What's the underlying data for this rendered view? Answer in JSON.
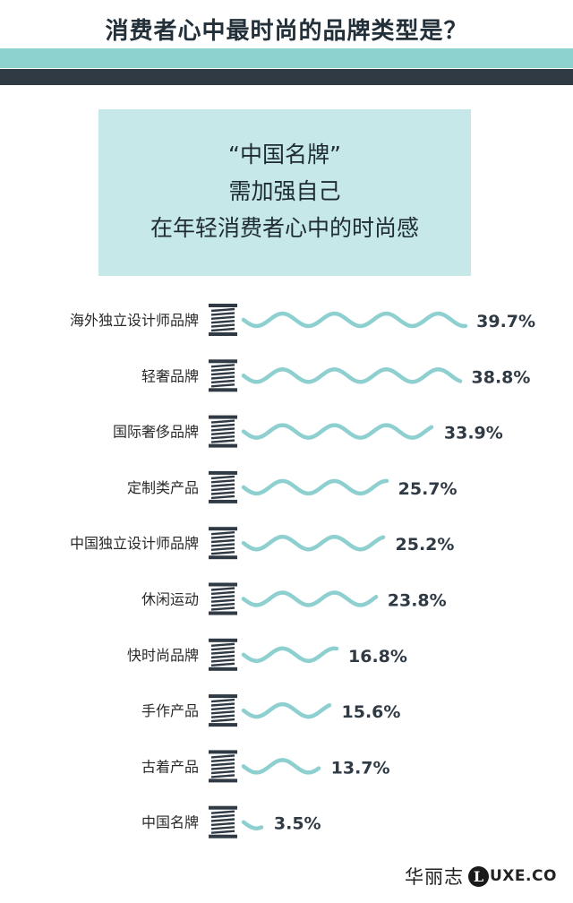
{
  "header": {
    "title": "消费者心中最时尚的品牌类型是？"
  },
  "headline": {
    "lines": [
      "“中国名牌”",
      "需加强自己",
      "在年轻消费者心中的时尚感"
    ]
  },
  "chart_data": {
    "type": "bar",
    "title": "",
    "xlabel": "",
    "ylabel": "",
    "value_suffix": "%",
    "categories": [
      "海外独立设计师品牌",
      "轻奢品牌",
      "国际奢侈品牌",
      "定制类产品",
      "中国独立设计师品牌",
      "休闲运动",
      "快时尚品牌",
      "手作产品",
      "古着产品",
      "中国名牌"
    ],
    "values": [
      39.7,
      38.8,
      33.9,
      25.7,
      25.2,
      23.8,
      16.8,
      15.6,
      13.7,
      3.5
    ],
    "value_labels": [
      "39.7%",
      "38.8%",
      "33.9%",
      "25.7%",
      "25.2%",
      "23.8%",
      "16.8%",
      "15.6%",
      "13.7%",
      "3.5%"
    ],
    "xlim": [
      0,
      40
    ],
    "bar_style": "wavy-thread",
    "colors": {
      "thread": "#8ecfd0",
      "spool": "#2f3a44",
      "text": "#2a2a2a"
    }
  },
  "brand": {
    "cn": "华丽志",
    "circle_letter": "L",
    "rest": "UXE.CO"
  }
}
